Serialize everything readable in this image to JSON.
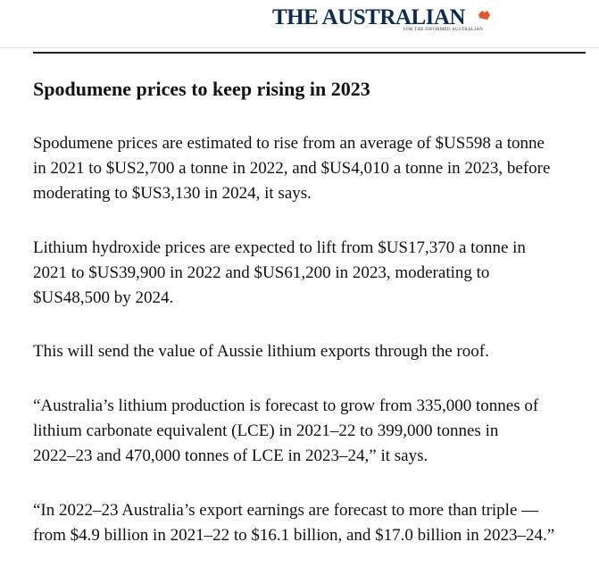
{
  "header": {
    "logo": "THE AUSTRALIAN",
    "tagline": "FOR THE INFORMED AUSTRALIAN"
  },
  "article": {
    "headline": "Spodumene prices to keep rising in 2023",
    "paragraphs": [
      [
        "Spodumene prices are estimated to rise from an average of $US598 a tonne",
        "in 2021 to $US2,700 a tonne in 2022, and $US4,010 a tonne in 2023, before",
        "moderating to $US3,130 in 2024, it says."
      ],
      [
        "Lithium hydroxide prices are expected to lift from $US17,370 a tonne in",
        "2021 to $US39,900 in 2022 and $US61,200 in 2023, moderating to",
        "$US48,500 by 2024."
      ],
      [
        "This will send the value of Aussie lithium exports through the roof."
      ],
      [
        "“Australia’s lithium production is forecast to grow from 335,000 tonnes of",
        "lithium carbonate equivalent (LCE) in 2021–22 to 399,000 tonnes in",
        "2022–23 and 470,000 tonnes of LCE in 2023–24,” it says."
      ],
      [
        "“In 2022–23 Australia’s export earnings are forecast to more than triple —",
        "from $4.9 billion in 2021–22 to $16.1 billion, and $17.0 billion in 2023–24.”"
      ]
    ]
  }
}
